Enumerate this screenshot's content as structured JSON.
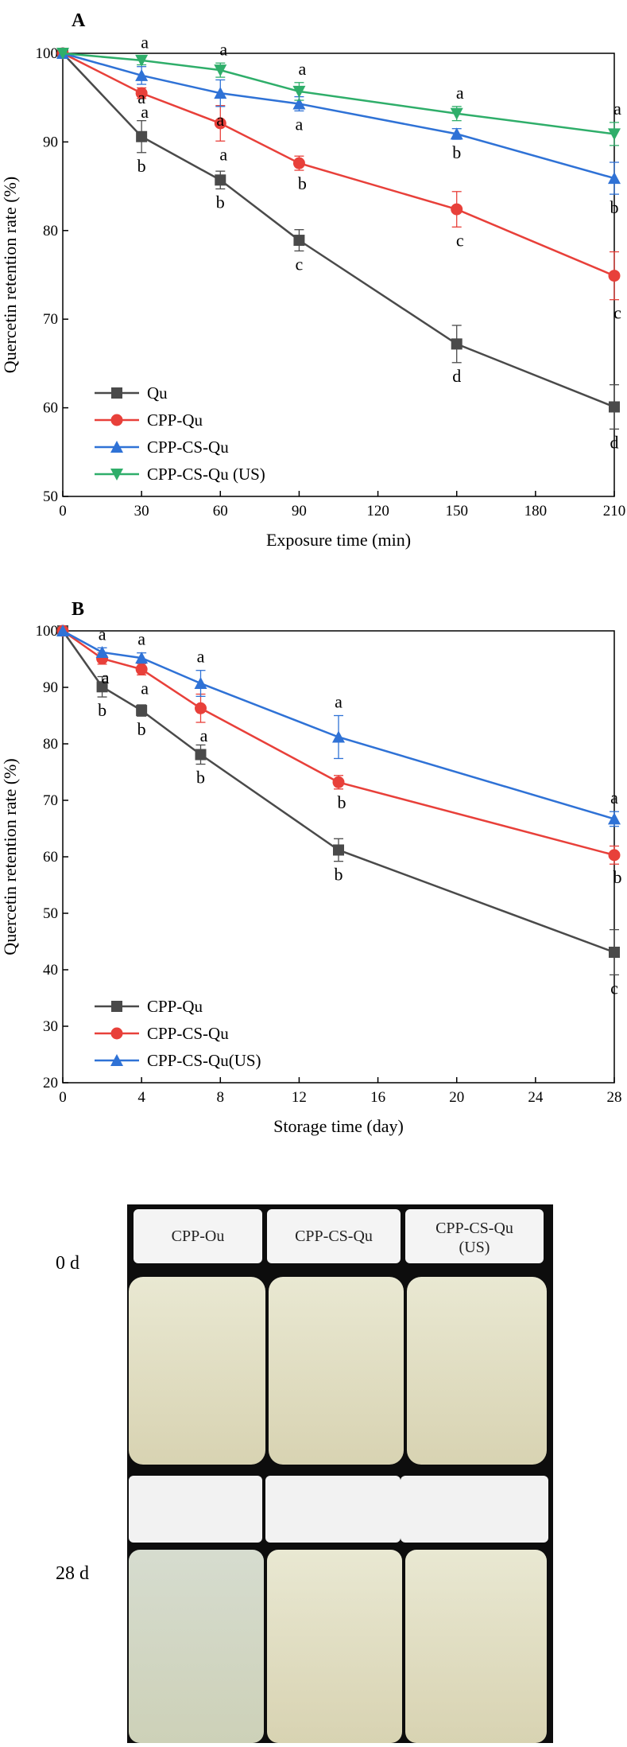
{
  "chart_data": [
    {
      "type": "line",
      "panel": "A",
      "xlabel": "Exposure time (min)",
      "ylabel": "Quercetin retention rate (%)",
      "x": [
        0,
        30,
        60,
        90,
        150,
        210
      ],
      "xlim": [
        0,
        210
      ],
      "xticks": [
        0,
        30,
        60,
        90,
        120,
        150,
        180,
        210
      ],
      "ylim": [
        50,
        100
      ],
      "yticks": [
        50,
        60,
        70,
        80,
        90,
        100
      ],
      "legend": "lower left",
      "series": [
        {
          "name": "Qu",
          "color": "#4a4a4a",
          "marker": "square",
          "values": [
            100,
            90.6,
            85.7,
            78.9,
            67.2,
            60.1
          ],
          "errors": [
            0,
            1.8,
            1.0,
            1.2,
            2.1,
            2.5
          ],
          "letters": [
            null,
            "b",
            "b",
            "c",
            "d",
            "d"
          ]
        },
        {
          "name": "CPP-Qu",
          "color": "#e8403a",
          "marker": "circle",
          "values": [
            100,
            95.5,
            92.1,
            87.6,
            82.4,
            74.9
          ],
          "errors": [
            0,
            0.6,
            2.0,
            0.8,
            2.0,
            2.7
          ],
          "letters": [
            null,
            "a",
            "a",
            "b",
            "c",
            "c"
          ]
        },
        {
          "name": "CPP-CS-Qu",
          "color": "#2f72d6",
          "marker": "triangle-up",
          "values": [
            100,
            97.5,
            95.5,
            94.3,
            90.9,
            85.9
          ],
          "errors": [
            0,
            1.0,
            1.5,
            0.8,
            0.6,
            1.8
          ],
          "letters": [
            null,
            "a",
            "a",
            "a",
            "b",
            "b"
          ]
        },
        {
          "name": "CPP-CS-Qu (US)",
          "color": "#2fae6a",
          "marker": "triangle-down",
          "values": [
            100,
            99.2,
            98.1,
            95.7,
            93.2,
            90.9
          ],
          "errors": [
            0,
            0.5,
            0.8,
            1.0,
            0.8,
            1.3
          ],
          "letters": [
            null,
            "a",
            "a",
            "a",
            "a",
            "a"
          ]
        }
      ]
    },
    {
      "type": "line",
      "panel": "B",
      "xlabel": "Storage time (day)",
      "ylabel": "Quercetin retention rate (%)",
      "x": [
        0,
        2,
        4,
        7,
        14,
        28
      ],
      "xlim": [
        0,
        28
      ],
      "xticks": [
        0,
        4,
        8,
        12,
        16,
        20,
        24,
        28
      ],
      "ylim": [
        20,
        100
      ],
      "yticks": [
        20,
        30,
        40,
        50,
        60,
        70,
        80,
        90,
        100
      ],
      "legend": "lower left",
      "series": [
        {
          "name": "CPP-Qu",
          "color": "#4a4a4a",
          "marker": "square",
          "values": [
            100,
            90.1,
            85.9,
            78.1,
            61.2,
            43.1
          ],
          "errors": [
            0,
            1.8,
            1.0,
            1.7,
            2.0,
            4.0
          ],
          "letters": [
            null,
            "b",
            "b",
            "b",
            "b",
            "c"
          ]
        },
        {
          "name": "CPP-CS-Qu",
          "color": "#e8403a",
          "marker": "circle",
          "values": [
            100,
            95.1,
            93.2,
            86.3,
            73.2,
            60.3
          ],
          "errors": [
            0,
            1.0,
            1.0,
            2.5,
            1.2,
            1.6
          ],
          "letters": [
            null,
            "a",
            "a",
            "a",
            "b",
            "b"
          ]
        },
        {
          "name": "CPP-CS-Qu(US)",
          "color": "#2f72d6",
          "marker": "triangle-up",
          "values": [
            100,
            96.2,
            95.2,
            90.7,
            81.2,
            66.7
          ],
          "errors": [
            0,
            0.8,
            0.9,
            2.3,
            3.8,
            1.3
          ],
          "letters": [
            null,
            "a",
            "a",
            "a",
            "a",
            "a"
          ]
        }
      ]
    }
  ],
  "photo": {
    "samples": [
      "CPP-Ou",
      "CPP-CS-Qu",
      "CPP-CS-Qu\n(US)"
    ],
    "days": [
      "0 d",
      "28 d"
    ]
  }
}
